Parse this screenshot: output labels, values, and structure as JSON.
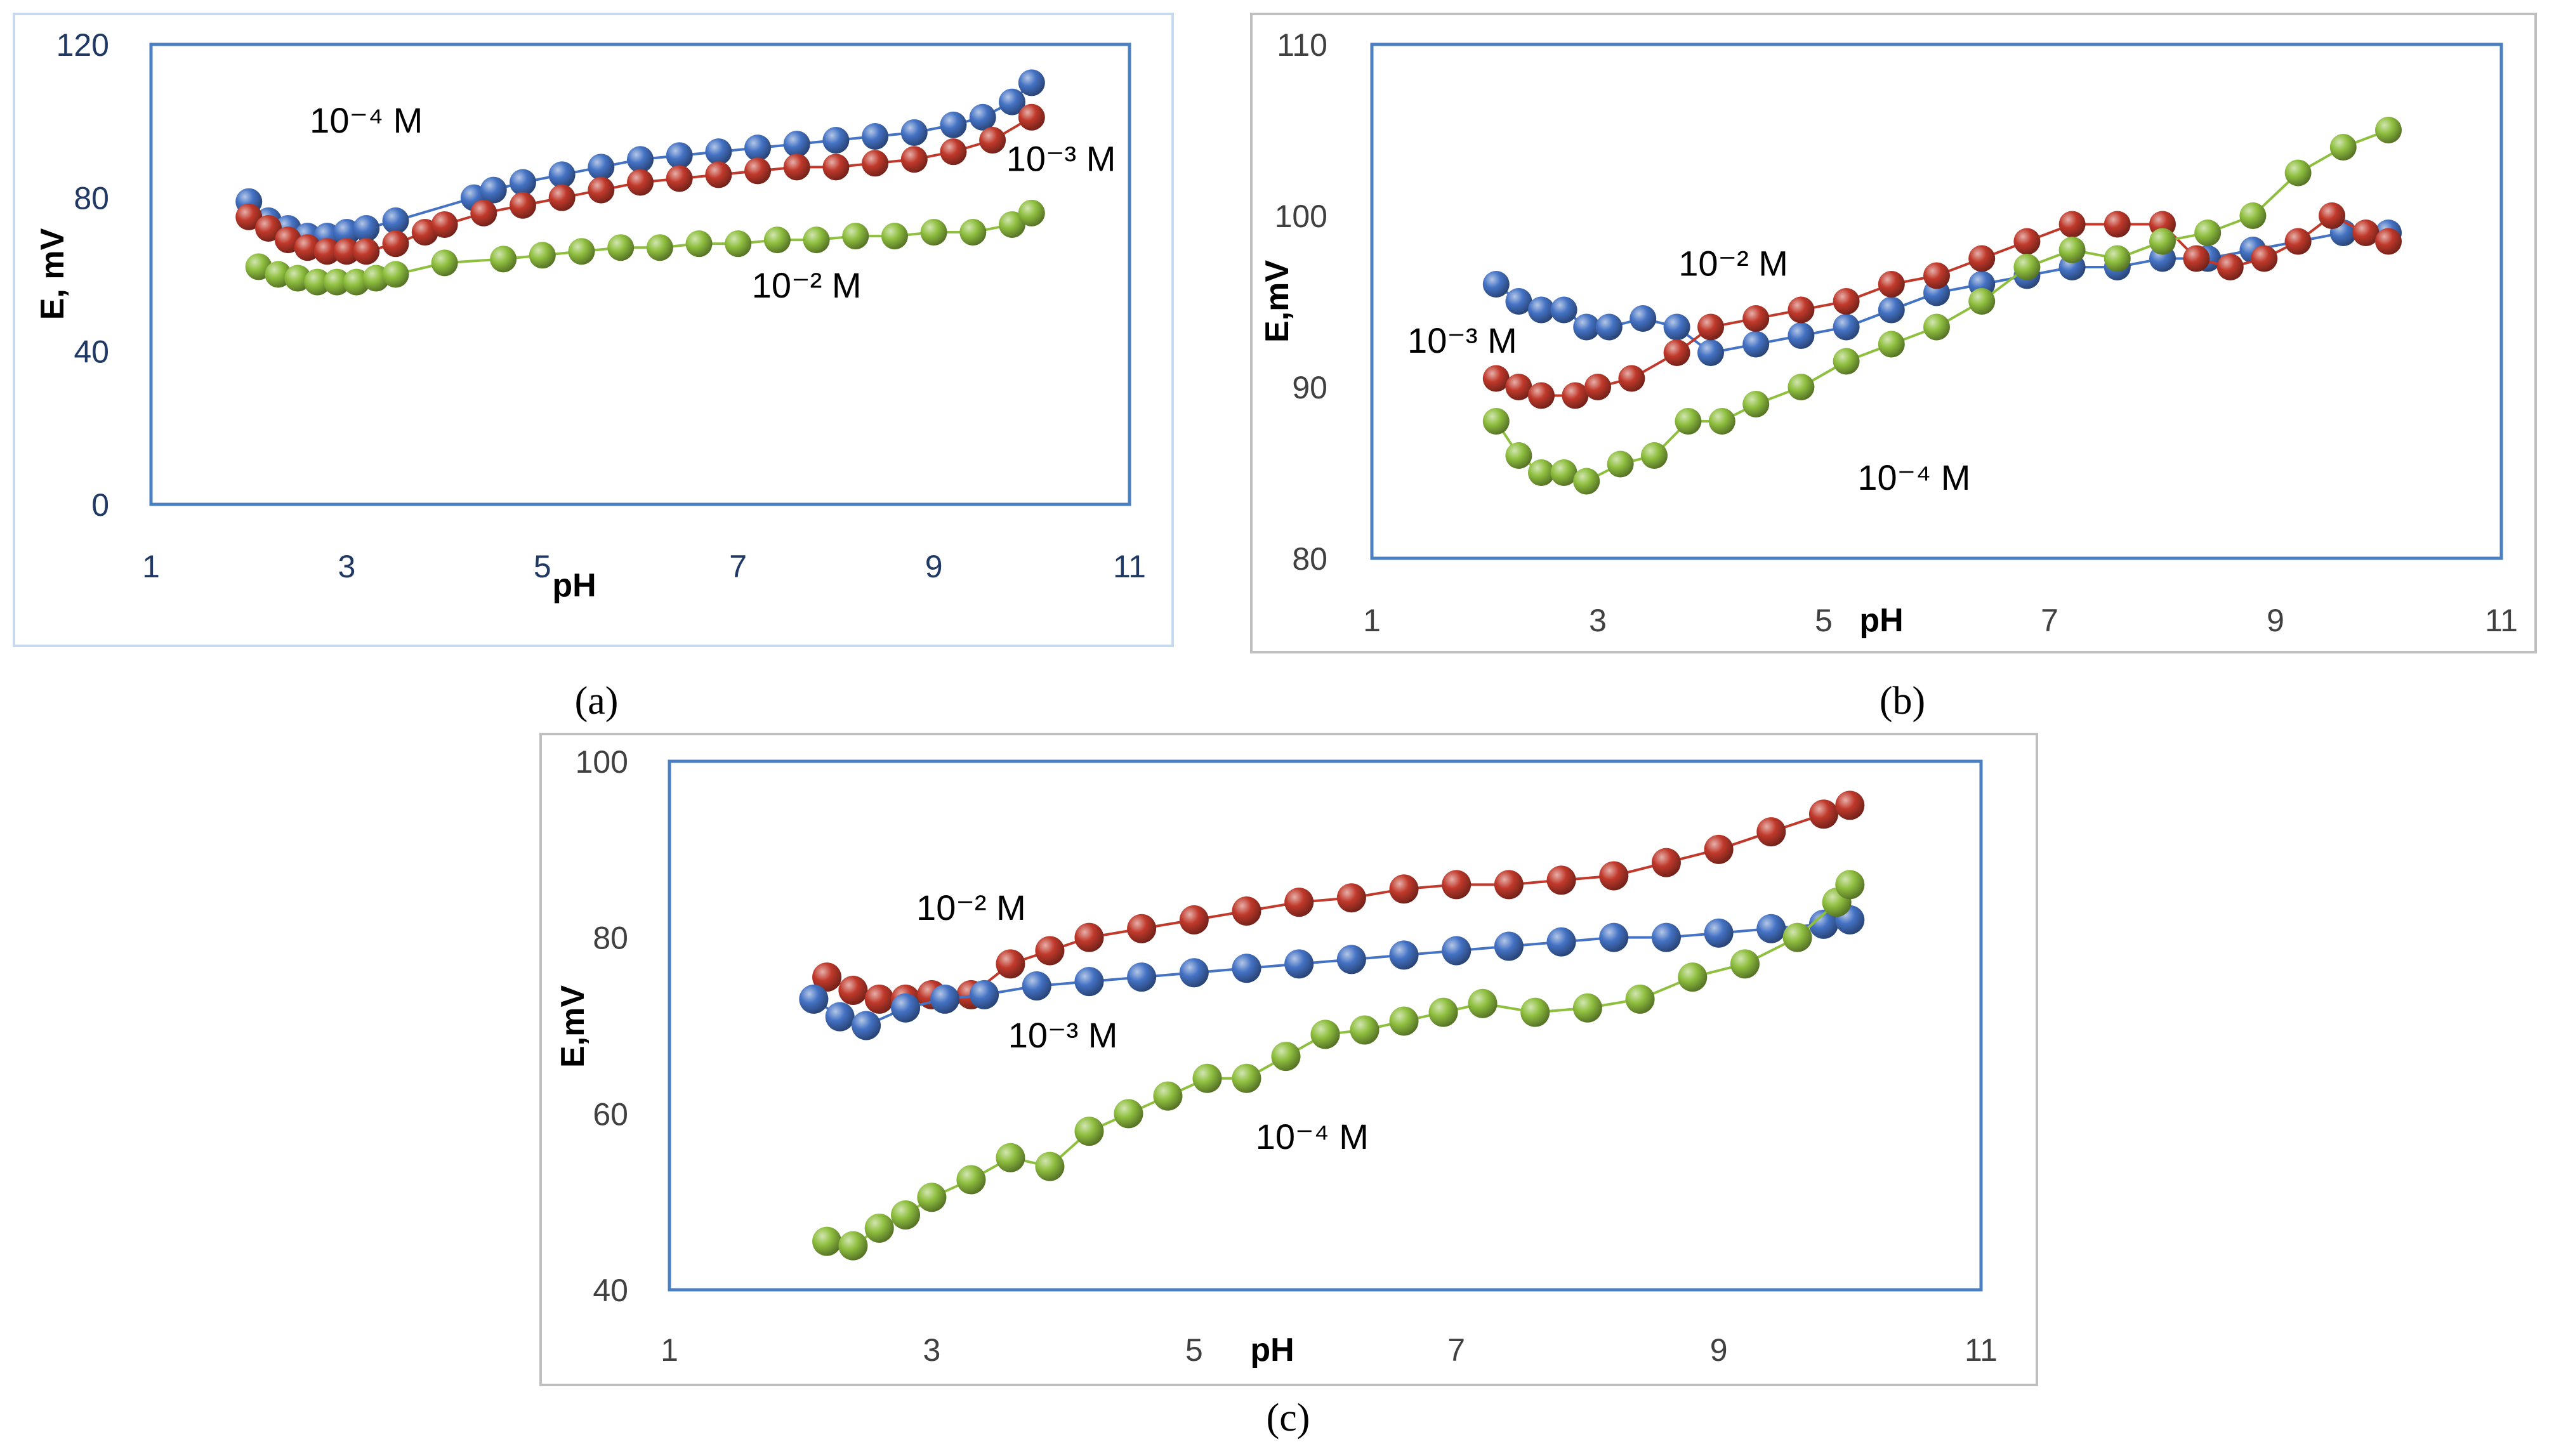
{
  "colors": {
    "frame_blue": "#4a7fc1",
    "border_a": "#c6d9ef",
    "border_bc": "#bfbfbf",
    "tick_a": "#1f3864",
    "tick_bc": "#404040",
    "blue": "#4472c4",
    "red": "#c0392b",
    "green": "#8fbf3f"
  },
  "chart_data": [
    {
      "type": "scatter",
      "panel_label": "(a)",
      "xlabel": "pH",
      "ylabel": "E, mV",
      "xlim": [
        1,
        11
      ],
      "ylim": [
        0,
        120
      ],
      "xticks": [
        "1",
        "3",
        "5",
        "7",
        "9",
        "11"
      ],
      "yticks": [
        "0",
        "40",
        "80",
        "120"
      ],
      "grid": false,
      "series": [
        {
          "name": "10⁻⁴ M",
          "color": "blue",
          "label_pos": [
            3.2,
            97
          ],
          "x": [
            2.0,
            2.2,
            2.4,
            2.6,
            2.8,
            3.0,
            3.2,
            3.5,
            4.3,
            4.5,
            4.8,
            5.2,
            5.6,
            6.0,
            6.4,
            6.8,
            7.2,
            7.6,
            8.0,
            8.4,
            8.8,
            9.2,
            9.5,
            9.8,
            10.0
          ],
          "y": [
            79,
            74,
            72,
            70,
            70,
            71,
            72,
            74,
            80,
            82,
            84,
            86,
            88,
            90,
            91,
            92,
            93,
            94,
            95,
            96,
            97,
            99,
            101,
            105,
            110
          ]
        },
        {
          "name": "10⁻³ M",
          "color": "red",
          "label_pos": [
            10.3,
            87
          ],
          "x": [
            2.0,
            2.2,
            2.4,
            2.6,
            2.8,
            3.0,
            3.2,
            3.5,
            3.8,
            4.0,
            4.4,
            4.8,
            5.2,
            5.6,
            6.0,
            6.4,
            6.8,
            7.2,
            7.6,
            8.0,
            8.4,
            8.8,
            9.2,
            9.6,
            10.0
          ],
          "y": [
            75,
            72,
            69,
            67,
            66,
            66,
            66,
            68,
            71,
            73,
            76,
            78,
            80,
            82,
            84,
            85,
            86,
            87,
            88,
            88,
            89,
            90,
            92,
            95,
            101
          ]
        },
        {
          "name": "10⁻² M",
          "color": "green",
          "label_pos": [
            7.7,
            54
          ],
          "x": [
            2.1,
            2.3,
            2.5,
            2.7,
            2.9,
            3.1,
            3.3,
            3.5,
            4.0,
            4.6,
            5.0,
            5.4,
            5.8,
            6.2,
            6.6,
            7.0,
            7.4,
            7.8,
            8.2,
            8.6,
            9.0,
            9.4,
            9.8,
            10.0
          ],
          "y": [
            62,
            60,
            59,
            58,
            58,
            58,
            59,
            60,
            63,
            64,
            65,
            66,
            67,
            67,
            68,
            68,
            69,
            69,
            70,
            70,
            71,
            71,
            73,
            76
          ]
        }
      ]
    },
    {
      "type": "scatter",
      "panel_label": "(b)",
      "xlabel": "pH",
      "ylabel": "E,mV",
      "xlim": [
        1,
        11
      ],
      "ylim": [
        80,
        110
      ],
      "xticks": [
        "1",
        "3",
        "5",
        "7",
        "9",
        "11"
      ],
      "yticks": [
        "80",
        "90",
        "100",
        "110"
      ],
      "grid": false,
      "series": [
        {
          "name": "10⁻² M",
          "color": "blue",
          "label_pos": [
            4.2,
            96.5
          ],
          "x": [
            2.1,
            2.3,
            2.5,
            2.7,
            2.9,
            3.1,
            3.4,
            3.7,
            4.0,
            4.4,
            4.8,
            5.2,
            5.6,
            6.0,
            6.4,
            6.8,
            7.2,
            7.6,
            8.0,
            8.4,
            8.8,
            9.2,
            9.6,
            10.0
          ],
          "y": [
            96,
            95,
            94.5,
            94.5,
            93.5,
            93.5,
            94,
            93.5,
            92,
            92.5,
            93,
            93.5,
            94.5,
            95.5,
            96,
            96.5,
            97,
            97,
            97.5,
            97.5,
            98,
            98.5,
            99,
            99
          ]
        },
        {
          "name": "10⁻³ M",
          "color": "red",
          "label_pos": [
            1.8,
            92
          ],
          "x": [
            2.1,
            2.3,
            2.5,
            2.8,
            3.0,
            3.3,
            3.7,
            4.0,
            4.4,
            4.8,
            5.2,
            5.6,
            6.0,
            6.4,
            6.8,
            7.2,
            7.6,
            8.0,
            8.3,
            8.6,
            8.9,
            9.2,
            9.5,
            9.8,
            10.0
          ],
          "y": [
            90.5,
            90,
            89.5,
            89.5,
            90,
            90.5,
            92,
            93.5,
            94,
            94.5,
            95,
            96,
            96.5,
            97.5,
            98.5,
            99.5,
            99.5,
            99.5,
            97.5,
            97,
            97.5,
            98.5,
            100,
            99,
            98.5
          ]
        },
        {
          "name": "10⁻⁴ M",
          "color": "green",
          "label_pos": [
            5.8,
            84
          ],
          "x": [
            2.1,
            2.3,
            2.5,
            2.7,
            2.9,
            3.2,
            3.5,
            3.8,
            4.1,
            4.4,
            4.8,
            5.2,
            5.6,
            6.0,
            6.4,
            6.8,
            7.2,
            7.6,
            8.0,
            8.4,
            8.8,
            9.2,
            9.6,
            10.0
          ],
          "y": [
            88,
            86,
            85,
            85,
            84.5,
            85.5,
            86,
            88,
            88,
            89,
            90,
            91.5,
            92.5,
            93.5,
            95,
            97,
            98,
            97.5,
            98.5,
            99,
            100,
            102.5,
            104,
            105
          ]
        }
      ]
    },
    {
      "type": "scatter",
      "panel_label": "(c)",
      "xlabel": "pH",
      "ylabel": "E,mV",
      "xlim": [
        1,
        11
      ],
      "ylim": [
        40,
        100
      ],
      "xticks": [
        "1",
        "3",
        "5",
        "7",
        "9",
        "11"
      ],
      "yticks": [
        "40",
        "60",
        "80",
        "100"
      ],
      "grid": false,
      "series": [
        {
          "name": "10⁻² M",
          "color": "red",
          "label_pos": [
            3.3,
            82
          ],
          "x": [
            2.2,
            2.4,
            2.6,
            2.8,
            3.0,
            3.3,
            3.6,
            3.9,
            4.2,
            4.6,
            5.0,
            5.4,
            5.8,
            6.2,
            6.6,
            7.0,
            7.4,
            7.8,
            8.2,
            8.6,
            9.0,
            9.4,
            9.8,
            10.0
          ],
          "y": [
            75.5,
            74,
            73,
            73,
            73.5,
            73.5,
            77,
            78.5,
            80,
            81,
            82,
            83,
            84,
            84.5,
            85.5,
            86,
            86,
            86.5,
            87,
            88.5,
            90,
            92,
            94,
            95
          ]
        },
        {
          "name": "10⁻³ M",
          "color": "blue",
          "label_pos": [
            4.0,
            67.5
          ],
          "x": [
            2.1,
            2.3,
            2.5,
            2.8,
            3.1,
            3.4,
            3.8,
            4.2,
            4.6,
            5.0,
            5.4,
            5.8,
            6.2,
            6.6,
            7.0,
            7.4,
            7.8,
            8.2,
            8.6,
            9.0,
            9.4,
            9.8,
            10.0
          ],
          "y": [
            73,
            71,
            70,
            72,
            73,
            73.5,
            74.5,
            75,
            75.5,
            76,
            76.5,
            77,
            77.5,
            78,
            78.5,
            79,
            79.5,
            80,
            80,
            80.5,
            81,
            81.5,
            82
          ]
        },
        {
          "name": "10⁻⁴ M",
          "color": "green",
          "label_pos": [
            5.9,
            56
          ],
          "x": [
            2.2,
            2.4,
            2.6,
            2.8,
            3.0,
            3.3,
            3.6,
            3.9,
            4.2,
            4.5,
            4.8,
            5.1,
            5.4,
            5.7,
            6.0,
            6.3,
            6.6,
            6.9,
            7.2,
            7.6,
            8.0,
            8.4,
            8.8,
            9.2,
            9.6,
            9.9,
            10.0
          ],
          "y": [
            45.5,
            45,
            47,
            48.5,
            50.5,
            52.5,
            55,
            54,
            58,
            60,
            62,
            64,
            64,
            66.5,
            69,
            69.5,
            70.5,
            71.5,
            72.5,
            71.5,
            72,
            73,
            75.5,
            77,
            80,
            84,
            86
          ]
        }
      ]
    }
  ]
}
